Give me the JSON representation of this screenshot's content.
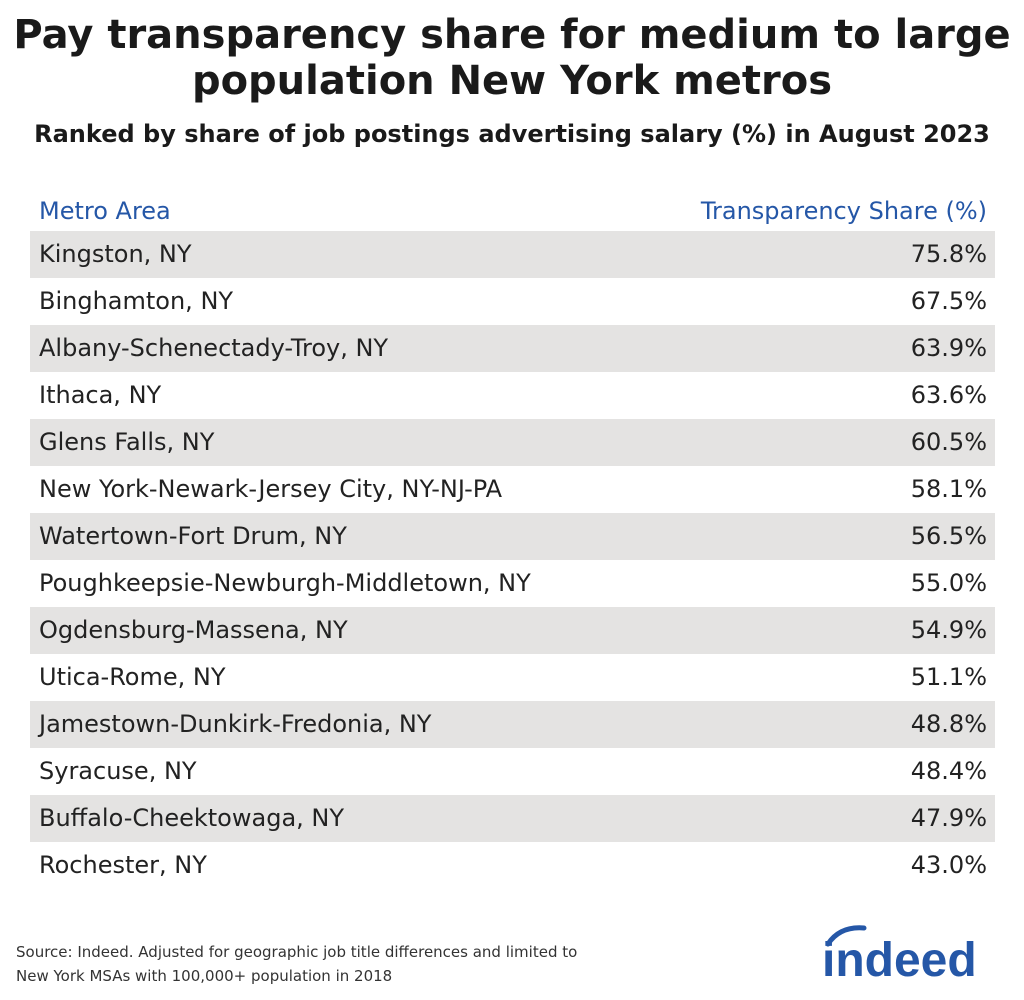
{
  "title": "Pay transparency share for medium to large population New York metros",
  "subtitle": "Ranked by share of job postings advertising salary (%) in August 2023",
  "source": "Source: Indeed. Adjusted for geographic job title differences and limited to New York MSAs with 100,000+ population in 2018",
  "logo_text": "indeed",
  "colors": {
    "header": "#2557a7",
    "row_band": "#e4e3e2",
    "logo": "#2557a7"
  },
  "chart_data": {
    "type": "table",
    "title": "Pay transparency share for medium to large population New York metros",
    "subtitle": "Ranked by share of job postings advertising salary (%) in August 2023",
    "columns": [
      "Metro Area",
      "Transparency Share (%)"
    ],
    "rows": [
      {
        "metro": "Kingston, NY",
        "share": "75.8%"
      },
      {
        "metro": "Binghamton, NY",
        "share": "67.5%"
      },
      {
        "metro": "Albany-Schenectady-Troy, NY",
        "share": "63.9%"
      },
      {
        "metro": "Ithaca, NY",
        "share": "63.6%"
      },
      {
        "metro": "Glens Falls, NY",
        "share": "60.5%"
      },
      {
        "metro": "New York-Newark-Jersey City, NY-NJ-PA",
        "share": "58.1%"
      },
      {
        "metro": "Watertown-Fort Drum, NY",
        "share": "56.5%"
      },
      {
        "metro": "Poughkeepsie-Newburgh-Middletown, NY",
        "share": "55.0%"
      },
      {
        "metro": "Ogdensburg-Massena, NY",
        "share": "54.9%"
      },
      {
        "metro": "Utica-Rome, NY",
        "share": "51.1%"
      },
      {
        "metro": "Jamestown-Dunkirk-Fredonia, NY",
        "share": "48.8%"
      },
      {
        "metro": "Syracuse, NY",
        "share": "48.4%"
      },
      {
        "metro": "Buffalo-Cheektowaga, NY",
        "share": "47.9%"
      },
      {
        "metro": "Rochester, NY",
        "share": "43.0%"
      }
    ]
  }
}
